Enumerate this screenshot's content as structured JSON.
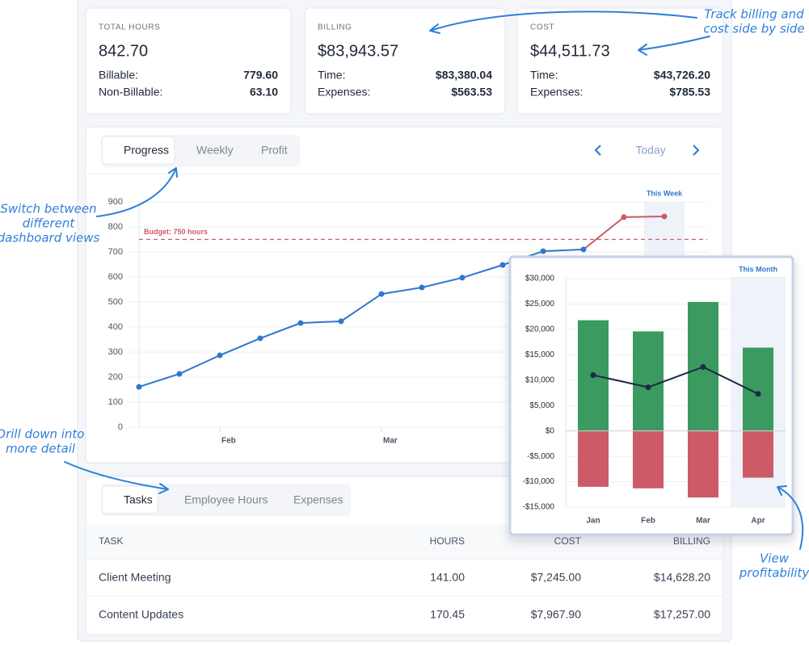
{
  "cards": [
    {
      "label": "TOTAL HOURS",
      "value": "842.70",
      "rows": [
        [
          "Billable:",
          "779.60"
        ],
        [
          "Non-Billable:",
          "63.10"
        ]
      ]
    },
    {
      "label": "BILLING",
      "value": "$83,943.57",
      "rows": [
        [
          "Time:",
          "$83,380.04"
        ],
        [
          "Expenses:",
          "$563.53"
        ]
      ]
    },
    {
      "label": "COST",
      "value": "$44,511.73",
      "rows": [
        [
          "Time:",
          "$43,726.20"
        ],
        [
          "Expenses:",
          "$785.53"
        ]
      ]
    }
  ],
  "view_tabs": [
    "Progress",
    "Weekly",
    "Profit"
  ],
  "nav": {
    "today": "Today"
  },
  "progress_chart": {
    "type": "line",
    "categories": [
      null,
      null,
      "Feb",
      null,
      null,
      null,
      "Mar",
      null,
      null,
      null,
      null,
      null,
      null,
      null
    ],
    "values": [
      161,
      213,
      287,
      355,
      416,
      423,
      532,
      558,
      597,
      648,
      703,
      710,
      839,
      842
    ],
    "ylim": [
      0,
      900
    ],
    "yticks": [
      0,
      100,
      200,
      300,
      400,
      500,
      600,
      700,
      800,
      900
    ],
    "grid": true,
    "color": "#2f77d0",
    "over_budget_color": "#cc5a67",
    "budget": {
      "value": 750,
      "label": "Budget: 750 hours"
    },
    "highlight": {
      "index": 13,
      "label": "This Week"
    }
  },
  "profit_chart": {
    "type": "bar",
    "categories": [
      "Jan",
      "Feb",
      "Mar",
      "Apr"
    ],
    "series": [
      {
        "color": "#3a9a5f",
        "values": [
          21800,
          19600,
          25400,
          16400
        ]
      },
      {
        "color": "#cc5a67",
        "values": [
          -11000,
          -11300,
          -13100,
          -9200
        ]
      },
      {
        "type": "line",
        "color": "#1b2a47",
        "values": [
          11000,
          8600,
          12600,
          7300
        ]
      }
    ],
    "ylim": [
      -15000,
      30000
    ],
    "yticks": [
      {
        "value": -15000,
        "label": "-$15,000"
      },
      {
        "value": -10000,
        "label": "-$10,000"
      },
      {
        "value": -5000,
        "label": "-$5,000"
      },
      {
        "value": 0,
        "label": "$0"
      },
      {
        "value": 5000,
        "label": "$5,000"
      },
      {
        "value": 10000,
        "label": "$10,000"
      },
      {
        "value": 15000,
        "label": "$15,000"
      },
      {
        "value": 20000,
        "label": "$20,000"
      },
      {
        "value": 25000,
        "label": "$25,000"
      },
      {
        "value": 30000,
        "label": "$30,000"
      }
    ],
    "grid": true,
    "highlight": {
      "index": 3,
      "label": "This Month"
    }
  },
  "detail_tabs": [
    "Tasks",
    "Employee Hours",
    "Expenses"
  ],
  "table": {
    "header": [
      "TASK",
      "HOURS",
      "COST",
      "BILLING"
    ],
    "rows": [
      [
        "Client Meeting",
        "141.00",
        "$7,245.00",
        "$14,628.20"
      ],
      [
        "Content Updates",
        "170.45",
        "$7,967.90",
        "$17,257.00"
      ]
    ]
  },
  "annotations": {
    "billing": [
      "Track billing and",
      "cost side by side"
    ],
    "views": [
      "Switch between",
      "different",
      "dashboard views"
    ],
    "drill": [
      "Drill down into",
      "more detail"
    ],
    "profit": [
      "View",
      "profitability"
    ]
  }
}
